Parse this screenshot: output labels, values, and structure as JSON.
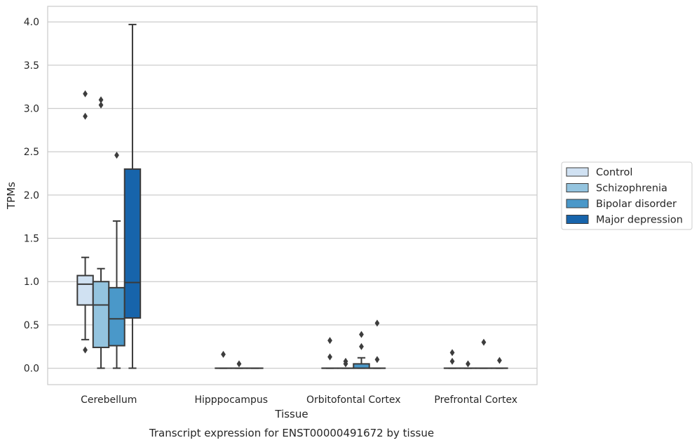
{
  "chart_data": {
    "type": "box",
    "xlabel": "Tissue",
    "ylabel": "TPMs",
    "caption": "Transcript expression for ENST00000491672 by tissue",
    "ylim": [
      -0.19,
      4.18
    ],
    "yticks": [
      "0.0",
      "0.5",
      "1.0",
      "1.5",
      "2.0",
      "2.5",
      "3.0",
      "3.5",
      "4.0"
    ],
    "ytick_values": [
      0,
      0.5,
      1.0,
      1.5,
      2.0,
      2.5,
      3.0,
      3.5,
      4.0
    ],
    "grid": "horizontal",
    "legend_position": "right",
    "categories": [
      "Cerebellum",
      "Hipppocampus",
      "Orbitofontal Cortex",
      "Prefrontal Cortex"
    ],
    "series": [
      {
        "name": "Control",
        "color": "#d0e1f2",
        "boxes": [
          {
            "whisker_low": 0.33,
            "q1": 0.73,
            "median": 0.97,
            "q3": 1.07,
            "whisker_high": 1.28,
            "outliers": [
              3.17,
              2.91,
              0.21
            ]
          },
          null,
          {
            "whisker_low": 0.0,
            "q1": 0.0,
            "median": 0.0,
            "q3": 0.0,
            "whisker_high": 0.0,
            "outliers": [
              0.32,
              0.13
            ]
          },
          {
            "whisker_low": 0.0,
            "q1": 0.0,
            "median": 0.0,
            "q3": 0.0,
            "whisker_high": 0.0,
            "outliers": [
              0.18,
              0.08
            ]
          }
        ]
      },
      {
        "name": "Schizophrenia",
        "color": "#94c4df",
        "boxes": [
          {
            "whisker_low": 0.0,
            "q1": 0.24,
            "median": 0.73,
            "q3": 1.0,
            "whisker_high": 1.15,
            "outliers": [
              3.1,
              3.04
            ]
          },
          {
            "whisker_low": 0.0,
            "q1": 0.0,
            "median": 0.0,
            "q3": 0.0,
            "whisker_high": 0.0,
            "outliers": [
              0.16
            ]
          },
          {
            "whisker_low": 0.0,
            "q1": 0.0,
            "median": 0.0,
            "q3": 0.0,
            "whisker_high": 0.0,
            "outliers": [
              0.08,
              0.05
            ]
          },
          {
            "whisker_low": 0.0,
            "q1": 0.0,
            "median": 0.0,
            "q3": 0.0,
            "whisker_high": 0.0,
            "outliers": [
              0.05
            ]
          }
        ]
      },
      {
        "name": "Bipolar disorder",
        "color": "#4a98c9",
        "boxes": [
          {
            "whisker_low": 0.0,
            "q1": 0.26,
            "median": 0.57,
            "q3": 0.93,
            "whisker_high": 1.7,
            "outliers": [
              2.46
            ]
          },
          {
            "whisker_low": 0.0,
            "q1": 0.0,
            "median": 0.0,
            "q3": 0.0,
            "whisker_high": 0.0,
            "outliers": [
              0.05
            ]
          },
          {
            "whisker_low": 0.0,
            "q1": 0.0,
            "median": 0.0,
            "q3": 0.05,
            "whisker_high": 0.12,
            "outliers": [
              0.39,
              0.25
            ]
          },
          {
            "whisker_low": 0.0,
            "q1": 0.0,
            "median": 0.0,
            "q3": 0.0,
            "whisker_high": 0.0,
            "outliers": [
              0.3
            ]
          }
        ]
      },
      {
        "name": "Major depression",
        "color": "#1764ab",
        "boxes": [
          {
            "whisker_low": 0.0,
            "q1": 0.58,
            "median": 0.99,
            "q3": 2.3,
            "whisker_high": 3.97,
            "outliers": []
          },
          {
            "whisker_low": 0.0,
            "q1": 0.0,
            "median": 0.0,
            "q3": 0.0,
            "whisker_high": 0.0,
            "outliers": []
          },
          {
            "whisker_low": 0.0,
            "q1": 0.0,
            "median": 0.0,
            "q3": 0.0,
            "whisker_high": 0.0,
            "outliers": [
              0.52,
              0.1
            ]
          },
          {
            "whisker_low": 0.0,
            "q1": 0.0,
            "median": 0.0,
            "q3": 0.0,
            "whisker_high": 0.0,
            "outliers": [
              0.09
            ]
          }
        ]
      }
    ]
  }
}
